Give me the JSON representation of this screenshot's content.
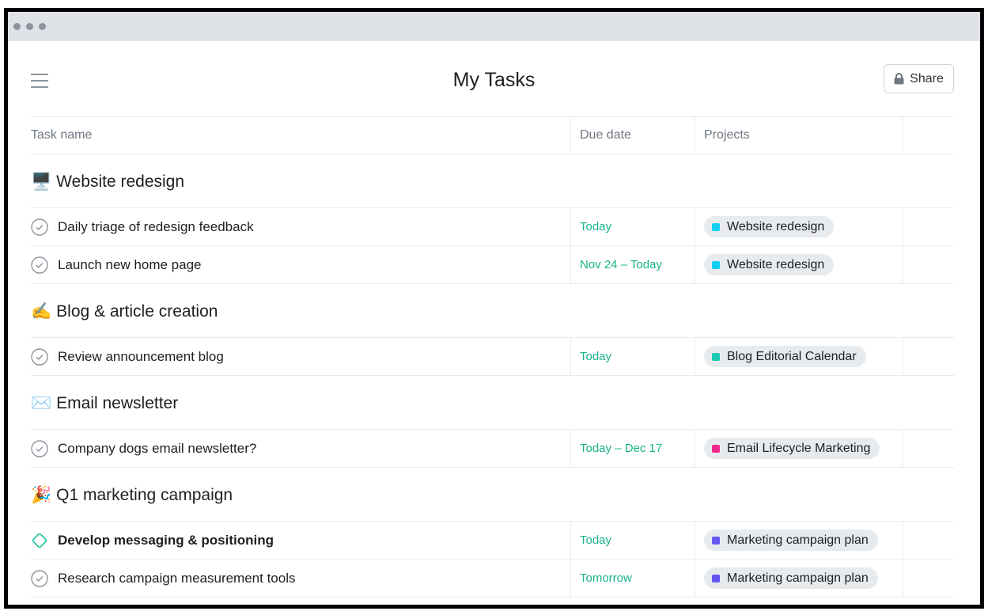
{
  "header": {
    "title": "My Tasks",
    "share_label": "Share"
  },
  "columns": {
    "task": "Task name",
    "due": "Due date",
    "projects": "Projects"
  },
  "sections": [
    {
      "emoji": "🖥️",
      "title": "Website redesign",
      "tasks": [
        {
          "name": "Daily triage of redesign feedback",
          "due": "Today",
          "project": "Website redesign",
          "color": "#14d0f0",
          "icon": "check-circle-icon",
          "bold": false
        },
        {
          "name": "Launch new home page",
          "due": "Nov 24 – Today",
          "project": "Website redesign",
          "color": "#14d0f0",
          "icon": "check-circle-icon",
          "bold": false
        }
      ]
    },
    {
      "emoji": "✍️",
      "title": "Blog & article creation",
      "tasks": [
        {
          "name": "Review announcement blog",
          "due": "Today",
          "project": "Blog Editorial Calendar",
          "color": "#1bc9b0",
          "icon": "check-circle-icon",
          "bold": false
        }
      ]
    },
    {
      "emoji": "✉️",
      "title": "Email newsletter",
      "tasks": [
        {
          "name": "Company dogs email newsletter?",
          "due": "Today – Dec 17",
          "project": "Email Lifecycle Marketing",
          "color": "#f0288c",
          "icon": "check-circle-icon",
          "bold": false
        }
      ]
    },
    {
      "emoji": "🎉",
      "title": "Q1 marketing campaign",
      "tasks": [
        {
          "name": "Develop messaging & positioning",
          "due": "Today",
          "project": "Marketing campaign plan",
          "color": "#6457f0",
          "icon": "milestone-diamond-icon",
          "bold": true
        },
        {
          "name": "Research campaign measurement tools",
          "due": "Tomorrow",
          "project": "Marketing campaign plan",
          "color": "#6457f0",
          "icon": "check-circle-icon",
          "bold": false
        }
      ]
    }
  ]
}
